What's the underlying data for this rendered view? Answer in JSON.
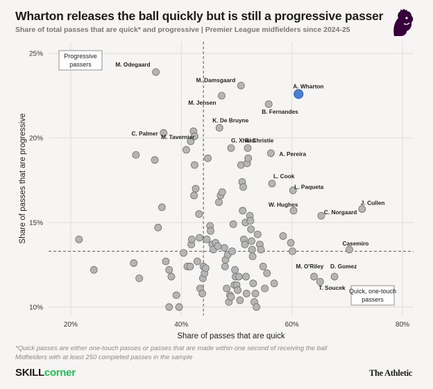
{
  "header": {
    "title": "Wharton releases the ball quickly but is still a progressive passer",
    "subtitle": "Share of total passes that are quick* and progressive | Premier League midfielders since 2024-25"
  },
  "footer": {
    "footnote_line1": "*Quick passes are either one-touch passes or passes that are made within one second of receiving the ball",
    "footnote_line2": "Midfielders with at least 250 completed passes in the sample",
    "brand_left_a": "SKILL",
    "brand_left_b": "corner",
    "brand_right": "The Athletic"
  },
  "colors": {
    "point": "#b5b5b5",
    "point_stroke": "#6f6f6f",
    "highlight": "#4a7fd1",
    "highlight_stroke": "#2d5fae",
    "grid": "#dddddd",
    "logo": "#37003c"
  },
  "chart_data": {
    "type": "scatter",
    "xlabel": "Share of passes that are quick",
    "ylabel": "Share of passes that are progressive",
    "xlim": [
      0.16,
      0.82
    ],
    "ylim": [
      0.095,
      0.257
    ],
    "x_ticks": [
      0.2,
      0.4,
      0.6,
      0.8
    ],
    "x_tick_labels": [
      "20%",
      "40%",
      "60%",
      "80%"
    ],
    "y_ticks": [
      0.1,
      0.15,
      0.2,
      0.25
    ],
    "y_tick_labels": [
      "10%",
      "15%",
      "20%",
      "25%"
    ],
    "reference_lines": {
      "x_average": 0.44,
      "y_average": 0.133
    },
    "quadrant_labels": {
      "top_left": "Progressive passers",
      "bottom_right": "Quick, one-touch passers"
    },
    "labeled_points": [
      {
        "name": "M. Odegaard",
        "x": 0.354,
        "y": 0.239,
        "highlight": false
      },
      {
        "name": "M. Damsgaard",
        "x": 0.508,
        "y": 0.231,
        "highlight": false
      },
      {
        "name": "A. Wharton",
        "x": 0.612,
        "y": 0.226,
        "highlight": true
      },
      {
        "name": "M. Jensen",
        "x": 0.473,
        "y": 0.225,
        "highlight": false
      },
      {
        "name": "B. Fernandes",
        "x": 0.558,
        "y": 0.22,
        "highlight": false
      },
      {
        "name": "K. De Bruyne",
        "x": 0.469,
        "y": 0.206,
        "highlight": false
      },
      {
        "name": "C. Palmer",
        "x": 0.368,
        "y": 0.203,
        "highlight": false
      },
      {
        "name": "M. Tavernier",
        "x": 0.424,
        "y": 0.201,
        "highlight": false
      },
      {
        "name": "G. Xhaka",
        "x": 0.49,
        "y": 0.194,
        "highlight": false
      },
      {
        "name": "R. Christie",
        "x": 0.52,
        "y": 0.194,
        "highlight": false
      },
      {
        "name": "A. Pereira",
        "x": 0.562,
        "y": 0.191,
        "highlight": false
      },
      {
        "name": "L. Cook",
        "x": 0.564,
        "y": 0.173,
        "highlight": false
      },
      {
        "name": "L. Paqueta",
        "x": 0.602,
        "y": 0.169,
        "highlight": false
      },
      {
        "name": "J. Cullen",
        "x": 0.727,
        "y": 0.158,
        "highlight": false
      },
      {
        "name": "W. Hughes",
        "x": 0.603,
        "y": 0.157,
        "highlight": false
      },
      {
        "name": "C. Norgaard",
        "x": 0.653,
        "y": 0.154,
        "highlight": false
      },
      {
        "name": "Casemiro",
        "x": 0.704,
        "y": 0.134,
        "highlight": false
      },
      {
        "name": "M. O'Riley",
        "x": 0.64,
        "y": 0.118,
        "highlight": false
      },
      {
        "name": "D. Gomez",
        "x": 0.677,
        "y": 0.118,
        "highlight": false
      },
      {
        "name": "T. Soucek",
        "x": 0.651,
        "y": 0.115,
        "highlight": false
      }
    ],
    "other_points": [
      [
        0.215,
        0.14
      ],
      [
        0.242,
        0.122
      ],
      [
        0.318,
        0.19
      ],
      [
        0.314,
        0.126
      ],
      [
        0.324,
        0.117
      ],
      [
        0.352,
        0.187
      ],
      [
        0.358,
        0.147
      ],
      [
        0.365,
        0.159
      ],
      [
        0.372,
        0.127
      ],
      [
        0.378,
        0.122
      ],
      [
        0.382,
        0.118
      ],
      [
        0.378,
        0.1
      ],
      [
        0.409,
        0.193
      ],
      [
        0.417,
        0.198
      ],
      [
        0.422,
        0.204
      ],
      [
        0.424,
        0.184
      ],
      [
        0.404,
        0.132
      ],
      [
        0.411,
        0.124
      ],
      [
        0.416,
        0.124
      ],
      [
        0.418,
        0.137
      ],
      [
        0.419,
        0.14
      ],
      [
        0.423,
        0.166
      ],
      [
        0.426,
        0.17
      ],
      [
        0.429,
        0.127
      ],
      [
        0.432,
        0.155
      ],
      [
        0.433,
        0.141
      ],
      [
        0.434,
        0.111
      ],
      [
        0.438,
        0.108
      ],
      [
        0.439,
        0.117
      ],
      [
        0.44,
        0.124
      ],
      [
        0.442,
        0.12
      ],
      [
        0.444,
        0.123
      ],
      [
        0.446,
        0.14
      ],
      [
        0.448,
        0.188
      ],
      [
        0.452,
        0.148
      ],
      [
        0.453,
        0.145
      ],
      [
        0.456,
        0.137
      ],
      [
        0.458,
        0.134
      ],
      [
        0.462,
        0.138
      ],
      [
        0.466,
        0.136
      ],
      [
        0.468,
        0.162
      ],
      [
        0.471,
        0.166
      ],
      [
        0.474,
        0.168
      ],
      [
        0.478,
        0.135
      ],
      [
        0.479,
        0.124
      ],
      [
        0.48,
        0.128
      ],
      [
        0.482,
        0.111
      ],
      [
        0.484,
        0.131
      ],
      [
        0.486,
        0.103
      ],
      [
        0.488,
        0.107
      ],
      [
        0.49,
        0.106
      ],
      [
        0.492,
        0.133
      ],
      [
        0.494,
        0.149
      ],
      [
        0.496,
        0.113
      ],
      [
        0.497,
        0.122
      ],
      [
        0.498,
        0.118
      ],
      [
        0.5,
        0.113
      ],
      [
        0.502,
        0.11
      ],
      [
        0.504,
        0.118
      ],
      [
        0.506,
        0.104
      ],
      [
        0.508,
        0.184
      ],
      [
        0.51,
        0.174
      ],
      [
        0.511,
        0.157
      ],
      [
        0.512,
        0.171
      ],
      [
        0.513,
        0.14
      ],
      [
        0.515,
        0.137
      ],
      [
        0.516,
        0.15
      ],
      [
        0.517,
        0.118
      ],
      [
        0.518,
        0.108
      ],
      [
        0.519,
        0.185
      ],
      [
        0.521,
        0.188
      ],
      [
        0.524,
        0.154
      ],
      [
        0.525,
        0.151
      ],
      [
        0.526,
        0.146
      ],
      [
        0.527,
        0.139
      ],
      [
        0.528,
        0.134
      ],
      [
        0.529,
        0.13
      ],
      [
        0.53,
        0.114
      ],
      [
        0.532,
        0.103
      ],
      [
        0.534,
        0.108
      ],
      [
        0.536,
        0.1
      ],
      [
        0.538,
        0.143
      ],
      [
        0.542,
        0.137
      ],
      [
        0.544,
        0.134
      ],
      [
        0.548,
        0.124
      ],
      [
        0.551,
        0.111
      ],
      [
        0.555,
        0.12
      ],
      [
        0.568,
        0.114
      ],
      [
        0.584,
        0.142
      ],
      [
        0.598,
        0.138
      ],
      [
        0.601,
        0.133
      ],
      [
        0.396,
        0.1
      ],
      [
        0.391,
        0.107
      ]
    ]
  }
}
